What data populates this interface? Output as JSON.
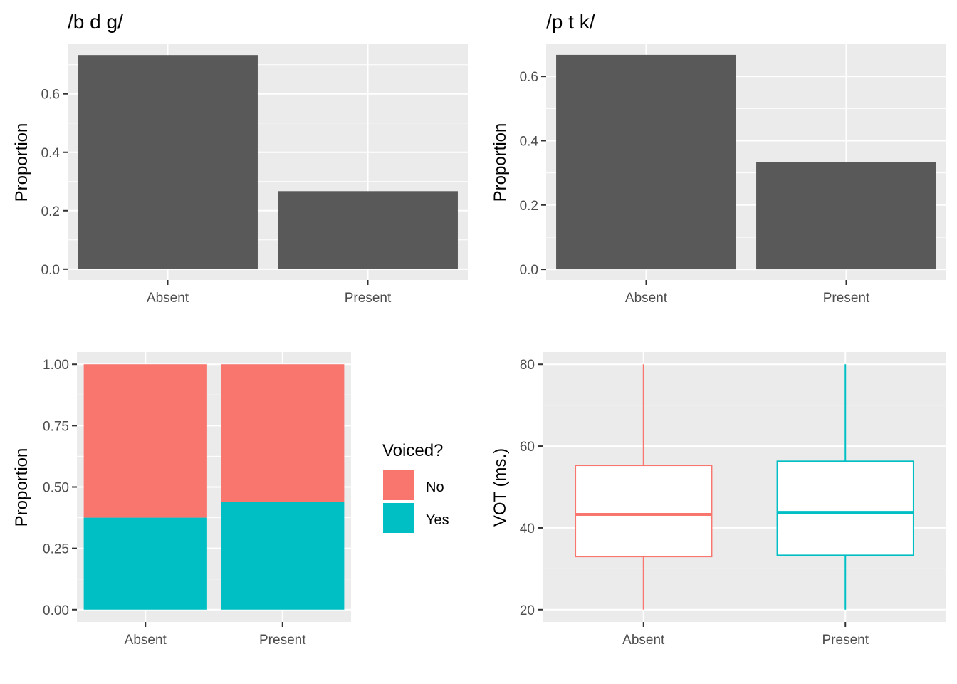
{
  "colors": {
    "panel_bg": "#ebebeb",
    "grid": "#ffffff",
    "bar": "#595959",
    "tick": "#333333",
    "no": "#f8766d",
    "yes": "#00bfc4"
  },
  "chart_data": [
    {
      "type": "bar",
      "title": "/b d g/",
      "xlabel": "",
      "ylabel": "Proportion",
      "categories": [
        "Absent",
        "Present"
      ],
      "values": [
        0.733,
        0.267
      ],
      "ylim": [
        -0.037,
        0.77
      ],
      "yticks": [
        0.0,
        0.2,
        0.4,
        0.6
      ],
      "ytick_labels": [
        "0.0",
        "0.2",
        "0.4",
        "0.6"
      ],
      "grid": true
    },
    {
      "type": "bar",
      "title": "/p t k/",
      "xlabel": "",
      "ylabel": "Proportion",
      "categories": [
        "Absent",
        "Present"
      ],
      "values": [
        0.667,
        0.333
      ],
      "ylim": [
        -0.033,
        0.7
      ],
      "yticks": [
        0.0,
        0.2,
        0.4,
        0.6
      ],
      "ytick_labels": [
        "0.0",
        "0.2",
        "0.4",
        "0.6"
      ],
      "grid": true
    },
    {
      "type": "bar",
      "stacked": true,
      "xlabel": "",
      "ylabel": "Proportion",
      "categories": [
        "Absent",
        "Present"
      ],
      "series": [
        {
          "name": "Yes",
          "values": [
            0.375,
            0.44
          ]
        },
        {
          "name": "No",
          "values": [
            0.625,
            0.56
          ]
        }
      ],
      "ylim": [
        -0.05,
        1.05
      ],
      "yticks": [
        0.0,
        0.25,
        0.5,
        0.75,
        1.0
      ],
      "ytick_labels": [
        "0.00",
        "0.25",
        "0.50",
        "0.75",
        "1.00"
      ],
      "legend": {
        "title": "Voiced?",
        "entries": [
          "No",
          "Yes"
        ],
        "position": "right"
      },
      "grid": true
    },
    {
      "type": "box",
      "xlabel": "",
      "ylabel": "VOT (ms.)",
      "categories": [
        "Absent",
        "Present"
      ],
      "boxes": [
        {
          "min": 20,
          "q1": 33,
          "median": 43.3,
          "q3": 55.3,
          "max": 80
        },
        {
          "min": 20,
          "q1": 33.3,
          "median": 43.8,
          "q3": 56.3,
          "max": 80
        }
      ],
      "ylim": [
        17,
        83
      ],
      "yticks": [
        20,
        40,
        60,
        80
      ],
      "ytick_labels": [
        "20",
        "40",
        "60",
        "80"
      ],
      "grid": true
    }
  ]
}
